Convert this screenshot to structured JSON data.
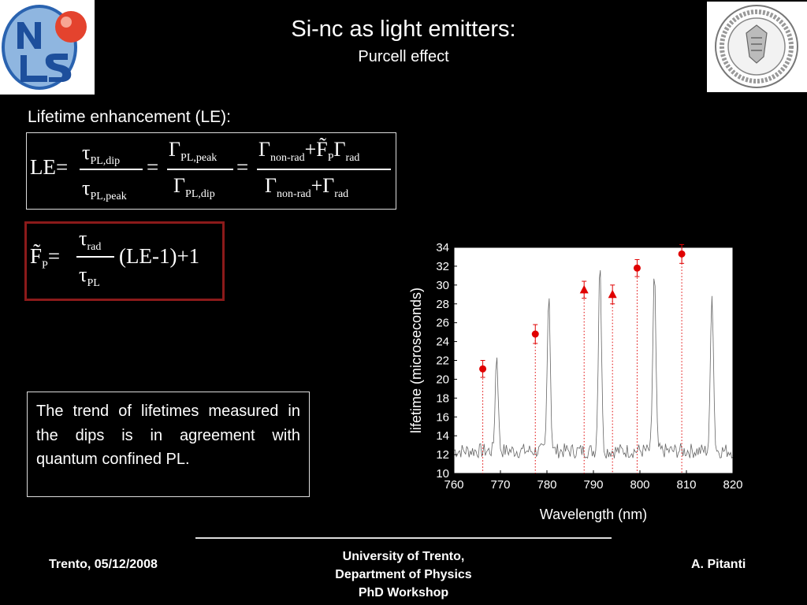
{
  "header": {
    "title": "Si-nc as light emitters:",
    "subtitle": "Purcell effect",
    "logo_left_letters": "NLS"
  },
  "content": {
    "section_label": "Lifetime enhancement (LE):",
    "note": "The trend of lifetimes measured in the dips is in agreement with quantum confined PL."
  },
  "formula_le": {
    "lhs": "LE=",
    "tau_dip": "PL,dip",
    "tau_peak": "PL,peak",
    "gamma_peak": "PL,peak",
    "gamma_dip": "PL,dip",
    "non_rad": "non-rad",
    "rad": "rad",
    "p": "P"
  },
  "formula_fp": {
    "rad": "rad",
    "pl": "PL",
    "tail": "(LE-1)+1",
    "p": "P"
  },
  "footer": {
    "left": "Trento, 05/12/2008",
    "center_lines": [
      "University of Trento,",
      "Department of Physics",
      "PhD Workshop"
    ],
    "right": "A. Pitanti"
  },
  "chart_data": {
    "type": "scatter",
    "xlabel": "Wavelength (nm)",
    "ylabel": "lifetime (microseconds)",
    "xlim": [
      760,
      820
    ],
    "ylim": [
      10,
      34
    ],
    "xticks": [
      760,
      770,
      780,
      790,
      800,
      810,
      820
    ],
    "yticks": [
      10,
      12,
      14,
      16,
      18,
      20,
      22,
      24,
      26,
      28,
      30,
      32,
      34
    ],
    "marker_color": "#e00000",
    "series": [
      {
        "marker": "circle",
        "x": [
          766.2,
          777.5,
          799.4,
          809.0
        ],
        "y": [
          21.1,
          24.8,
          31.8,
          33.3
        ],
        "err": [
          0.9,
          1.0,
          0.9,
          1.0
        ]
      },
      {
        "marker": "triangle",
        "x": [
          788.0,
          794.1
        ],
        "y": [
          29.5,
          29.0
        ],
        "err": [
          0.9,
          1.0
        ]
      }
    ],
    "spectrum_peaks": [
      {
        "x": 769.2,
        "y": 22.7
      },
      {
        "x": 780.4,
        "y": 29.7
      },
      {
        "x": 791.4,
        "y": 33.0
      },
      {
        "x": 803.1,
        "y": 31.6
      },
      {
        "x": 815.5,
        "y": 29.5
      }
    ]
  }
}
